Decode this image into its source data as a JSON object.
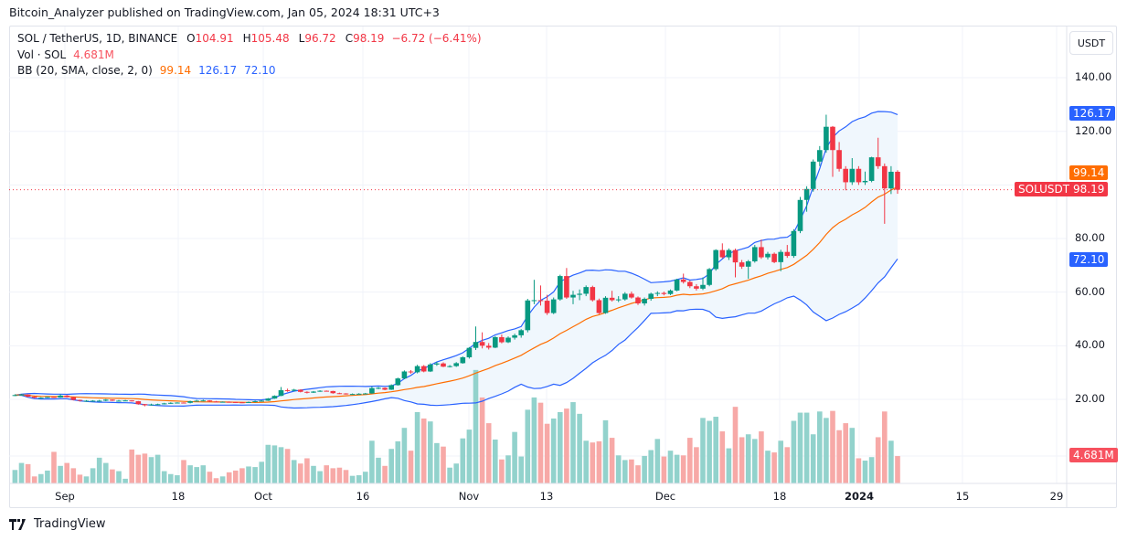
{
  "header": {
    "published": "Bitcoin_Analyzer published on TradingView.com, Jan 05, 2024 18:31 UTC+3"
  },
  "legend": {
    "symbol": "SOL / TetherUS, 1D, BINANCE",
    "o_label": "O",
    "o": "104.91",
    "h_label": "H",
    "h": "105.48",
    "l_label": "L",
    "l": "96.72",
    "c_label": "C",
    "c": "98.19",
    "change": "−6.72 (−6.41%)",
    "vol_label": "Vol · SOL",
    "vol": "4.681M",
    "bb_label": "BB (20, SMA, close, 2, 0)",
    "bb_basis": "99.14",
    "bb_upper": "126.17",
    "bb_lower": "72.10"
  },
  "price_axis": {
    "unit": "USDT",
    "ticks": [
      "140.00",
      "120.00",
      "80.00",
      "60.00",
      "40.00",
      "20.00"
    ],
    "tags": {
      "upper": "126.17",
      "basis": "99.14",
      "last": "98.19",
      "symbol": "SOLUSDT",
      "lower": "72.10",
      "volume": "4.681M"
    }
  },
  "time_axis": {
    "ticks": [
      "Sep",
      "18",
      "Oct",
      "16",
      "Nov",
      "13",
      "Dec",
      "18",
      "2024",
      "15",
      "29"
    ]
  },
  "footer": {
    "brand": "TradingView"
  },
  "colors": {
    "up": "#089981",
    "down": "#f23645",
    "vol_up": "#92d2cc",
    "vol_down": "#f7a9a7",
    "bb_basis": "#ff6d00",
    "bb_band": "#2962ff",
    "band_fill": "#f0f7fd"
  },
  "chart_data": {
    "type": "candlestick",
    "title": "SOL / TetherUS, 1D, BINANCE",
    "first_date": "2023-08-22",
    "last_date": "2024-01-05",
    "ylim": [
      10,
      150
    ],
    "y_ticks": [
      20,
      40,
      60,
      80,
      100,
      120,
      140
    ],
    "grid": true,
    "indicators": [
      "Volume",
      "Bollinger Bands (20, 2)"
    ],
    "ohlc": [
      [
        21.5,
        21.9,
        21.2,
        21.6
      ],
      [
        21.6,
        22.0,
        21.5,
        21.8
      ],
      [
        21.8,
        21.9,
        20.8,
        21.0
      ],
      [
        21.0,
        21.2,
        20.4,
        20.6
      ],
      [
        20.6,
        20.8,
        20.5,
        20.6
      ],
      [
        20.6,
        21.0,
        20.5,
        20.9
      ],
      [
        20.9,
        21.1,
        20.5,
        20.7
      ],
      [
        20.7,
        21.9,
        20.6,
        21.4
      ],
      [
        21.4,
        21.6,
        20.7,
        20.8
      ],
      [
        20.8,
        21.0,
        19.6,
        19.8
      ],
      [
        19.8,
        19.9,
        19.2,
        19.5
      ],
      [
        19.5,
        19.7,
        19.4,
        19.5
      ],
      [
        19.5,
        19.7,
        19.3,
        19.5
      ],
      [
        19.5,
        19.8,
        19.2,
        19.5
      ],
      [
        19.5,
        20.1,
        19.3,
        19.9
      ],
      [
        19.9,
        20.0,
        19.4,
        19.5
      ],
      [
        19.5,
        19.8,
        19.3,
        19.5
      ],
      [
        19.5,
        19.8,
        19.3,
        19.6
      ],
      [
        19.6,
        19.7,
        19.2,
        19.3
      ],
      [
        19.3,
        19.4,
        18.0,
        18.2
      ],
      [
        18.2,
        18.3,
        17.4,
        17.8
      ],
      [
        17.8,
        18.4,
        17.7,
        18.1
      ],
      [
        18.1,
        18.4,
        17.9,
        18.2
      ],
      [
        18.2,
        18.7,
        18.1,
        18.5
      ],
      [
        18.5,
        18.9,
        18.3,
        18.7
      ],
      [
        18.7,
        18.9,
        18.6,
        18.8
      ],
      [
        18.8,
        18.9,
        18.5,
        18.7
      ],
      [
        18.7,
        19.5,
        18.5,
        19.3
      ],
      [
        19.3,
        19.8,
        19.2,
        19.5
      ],
      [
        19.5,
        19.9,
        19.3,
        19.6
      ],
      [
        19.6,
        19.7,
        19.0,
        19.2
      ],
      [
        19.2,
        19.4,
        19.0,
        19.1
      ],
      [
        19.1,
        19.2,
        19.0,
        19.1
      ],
      [
        19.1,
        19.2,
        18.8,
        19.0
      ],
      [
        19.0,
        19.1,
        18.7,
        18.9
      ],
      [
        18.9,
        19.0,
        18.6,
        18.8
      ],
      [
        18.8,
        19.2,
        18.7,
        19.0
      ],
      [
        19.0,
        19.5,
        18.9,
        19.3
      ],
      [
        19.3,
        19.7,
        19.2,
        19.5
      ],
      [
        19.5,
        20.5,
        19.4,
        20.3
      ],
      [
        20.3,
        21.5,
        20.2,
        21.3
      ],
      [
        21.3,
        24.6,
        21.2,
        23.4
      ],
      [
        23.4,
        24.0,
        22.8,
        23.2
      ],
      [
        23.2,
        23.9,
        23.0,
        23.6
      ],
      [
        23.6,
        23.7,
        22.6,
        22.8
      ],
      [
        22.8,
        23.0,
        22.2,
        22.5
      ],
      [
        22.5,
        23.1,
        22.4,
        22.9
      ],
      [
        22.9,
        23.4,
        22.8,
        23.2
      ],
      [
        23.2,
        23.3,
        22.9,
        23.1
      ],
      [
        23.1,
        23.2,
        22.1,
        22.3
      ],
      [
        22.3,
        22.5,
        22.0,
        22.2
      ],
      [
        22.2,
        22.3,
        21.8,
        22.0
      ],
      [
        22.0,
        22.2,
        21.9,
        22.0
      ],
      [
        22.0,
        22.3,
        21.9,
        22.1
      ],
      [
        22.1,
        22.4,
        22.0,
        22.2
      ],
      [
        22.2,
        24.8,
        22.1,
        24.2
      ],
      [
        24.2,
        24.6,
        23.8,
        24.3
      ],
      [
        24.3,
        24.5,
        23.4,
        23.6
      ],
      [
        23.6,
        25.6,
        23.5,
        25.3
      ],
      [
        25.3,
        28.1,
        25.1,
        27.8
      ],
      [
        27.8,
        30.8,
        27.5,
        30.4
      ],
      [
        30.4,
        30.9,
        29.6,
        30.1
      ],
      [
        30.1,
        32.9,
        29.7,
        32.4
      ],
      [
        32.4,
        32.8,
        30.1,
        30.4
      ],
      [
        30.4,
        33.5,
        30.2,
        33.0
      ],
      [
        33.0,
        34.0,
        32.5,
        33.4
      ],
      [
        33.4,
        33.8,
        32.0,
        32.2
      ],
      [
        32.2,
        32.8,
        31.9,
        32.4
      ],
      [
        32.4,
        33.9,
        32.1,
        33.5
      ],
      [
        33.5,
        36.0,
        33.3,
        35.7
      ],
      [
        35.7,
        39.5,
        35.2,
        39.2
      ],
      [
        39.2,
        47.2,
        38.4,
        41.4
      ],
      [
        41.4,
        45.0,
        39.0,
        40.0
      ],
      [
        40.0,
        41.0,
        38.6,
        39.3
      ],
      [
        39.3,
        43.6,
        39.1,
        43.2
      ],
      [
        43.2,
        44.2,
        40.9,
        41.3
      ],
      [
        41.3,
        43.5,
        41.0,
        43.0
      ],
      [
        43.0,
        44.5,
        42.3,
        43.9
      ],
      [
        43.9,
        46.2,
        43.0,
        45.8
      ],
      [
        45.8,
        57.5,
        45.0,
        56.9
      ],
      [
        56.9,
        64.6,
        55.5,
        57.0
      ],
      [
        57.0,
        62.5,
        55.0,
        56.8
      ],
      [
        56.8,
        59.0,
        51.5,
        52.2
      ],
      [
        52.2,
        58.0,
        51.8,
        57.3
      ],
      [
        57.3,
        66.5,
        56.8,
        66.0
      ],
      [
        66.0,
        69.0,
        57.5,
        58.0
      ],
      [
        58.0,
        60.5,
        55.5,
        59.0
      ],
      [
        59.0,
        61.0,
        57.0,
        59.4
      ],
      [
        59.4,
        62.5,
        58.5,
        61.9
      ],
      [
        61.9,
        62.4,
        56.5,
        57.0
      ],
      [
        57.0,
        57.6,
        51.8,
        52.2
      ],
      [
        52.2,
        58.5,
        51.9,
        57.9
      ],
      [
        57.9,
        60.5,
        56.5,
        57.0
      ],
      [
        57.0,
        58.5,
        56.3,
        57.3
      ],
      [
        57.3,
        60.0,
        56.8,
        59.4
      ],
      [
        59.4,
        60.2,
        57.6,
        58.0
      ],
      [
        58.0,
        58.4,
        55.2,
        55.8
      ],
      [
        55.8,
        58.0,
        55.0,
        57.5
      ],
      [
        57.5,
        59.8,
        56.8,
        59.4
      ],
      [
        59.4,
        60.3,
        58.5,
        59.7
      ],
      [
        59.7,
        60.2,
        58.8,
        59.3
      ],
      [
        59.3,
        61.0,
        58.9,
        60.6
      ],
      [
        60.6,
        65.0,
        60.3,
        64.7
      ],
      [
        64.7,
        66.9,
        63.2,
        63.8
      ],
      [
        63.8,
        64.3,
        61.5,
        62.2
      ],
      [
        62.2,
        63.0,
        60.6,
        61.3
      ],
      [
        61.3,
        65.5,
        60.8,
        62.7
      ],
      [
        62.7,
        69.0,
        62.2,
        68.6
      ],
      [
        68.6,
        76.0,
        68.0,
        75.7
      ],
      [
        75.7,
        78.2,
        72.6,
        73.0
      ],
      [
        73.0,
        76.3,
        72.0,
        75.7
      ],
      [
        75.7,
        76.2,
        65.5,
        71.1
      ],
      [
        71.1,
        72.0,
        68.7,
        69.5
      ],
      [
        69.5,
        72.0,
        65.0,
        71.5
      ],
      [
        71.5,
        77.6,
        71.0,
        76.8
      ],
      [
        76.8,
        79.6,
        72.4,
        73.0
      ],
      [
        73.0,
        75.0,
        72.2,
        74.3
      ],
      [
        74.3,
        74.8,
        70.8,
        71.2
      ],
      [
        71.2,
        75.8,
        67.8,
        75.0
      ],
      [
        75.0,
        77.6,
        72.8,
        73.5
      ],
      [
        73.5,
        83.5,
        72.8,
        82.8
      ],
      [
        82.8,
        95.5,
        82.0,
        94.4
      ],
      [
        94.4,
        99.5,
        90.0,
        98.5
      ],
      [
        98.5,
        109.5,
        97.5,
        108.7
      ],
      [
        108.7,
        114.5,
        107.0,
        113.0
      ],
      [
        113.0,
        126.2,
        112.0,
        121.7
      ],
      [
        121.7,
        122.0,
        103.0,
        113.0
      ],
      [
        113.0,
        116.0,
        105.0,
        106.0
      ],
      [
        106.0,
        107.0,
        98.0,
        101.0
      ],
      [
        101.0,
        110.0,
        100.0,
        106.0
      ],
      [
        106.0,
        107.0,
        100.0,
        101.0
      ],
      [
        101.0,
        105.0,
        100.0,
        101.5
      ],
      [
        101.5,
        110.5,
        101.0,
        110.3
      ],
      [
        110.3,
        117.6,
        106.0,
        107.0
      ],
      [
        107.0,
        108.0,
        85.5,
        98.7
      ],
      [
        98.7,
        107.0,
        96.6,
        104.91
      ],
      [
        104.91,
        105.48,
        96.72,
        98.19
      ]
    ],
    "volume_millions": [
      2.3,
      3.5,
      3.3,
      1.2,
      1.6,
      2.2,
      5.4,
      3.0,
      3.5,
      2.6,
      1.5,
      1.2,
      2.6,
      4.4,
      3.5,
      2.4,
      2.1,
      0.8,
      5.8,
      4.9,
      5.1,
      4.5,
      4.9,
      2.1,
      1.6,
      1.4,
      4.0,
      3.1,
      2.8,
      3.1,
      2.0,
      0.9,
      1.2,
      1.9,
      2.2,
      2.6,
      2.9,
      2.8,
      3.7,
      6.6,
      6.5,
      6.2,
      5.9,
      4.0,
      3.4,
      4.3,
      3.0,
      2.1,
      3.1,
      2.6,
      2.7,
      2.3,
      1.3,
      1.4,
      2.0,
      7.3,
      4.4,
      3.0,
      5.9,
      7.2,
      9.5,
      5.6,
      12.2,
      11.1,
      10.6,
      6.9,
      6.3,
      2.7,
      3.4,
      7.7,
      9.2,
      19.4,
      14.7,
      10.3,
      7.5,
      4.1,
      4.8,
      8.8,
      4.6,
      12.6,
      14.7,
      13.8,
      10.2,
      11.1,
      12.2,
      12.8,
      13.9,
      11.9,
      7.3,
      7.0,
      7.2,
      10.8,
      7.8,
      4.8,
      4.0,
      4.1,
      3.1,
      4.7,
      5.7,
      7.6,
      4.6,
      5.6,
      4.9,
      4.8,
      7.8,
      6.2,
      11.2,
      10.7,
      11.4,
      8.9,
      6.0,
      13.1,
      7.9,
      8.4,
      7.6,
      8.9,
      5.6,
      5.3,
      7.3,
      6.2,
      10.7,
      12.1,
      12.1,
      8.4,
      12.3,
      11.2,
      12.4,
      9.1,
      10.3,
      9.5,
      4.3,
      3.9,
      4.5,
      7.9,
      12.3,
      7.3,
      4.681
    ]
  }
}
